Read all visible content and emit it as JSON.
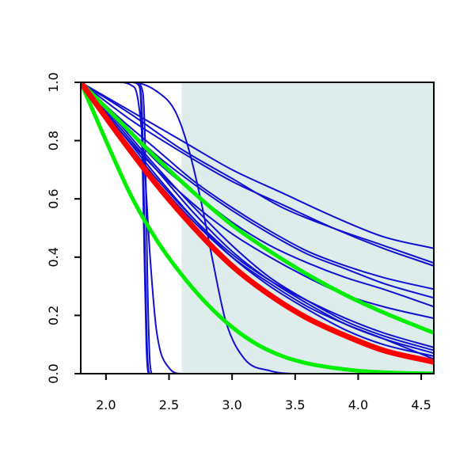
{
  "chart_data": {
    "type": "line",
    "title": "",
    "xlabel": "",
    "ylabel": "",
    "xlim": [
      1.8,
      4.6
    ],
    "ylim": [
      0,
      1
    ],
    "grid": false,
    "x_ticks": [
      2.0,
      2.5,
      3.0,
      3.5,
      4.0,
      4.5
    ],
    "x_tick_labels": [
      "2.0",
      "2.5",
      "3.0",
      "3.5",
      "4.0",
      "4.5"
    ],
    "y_ticks": [
      0.0,
      0.2,
      0.4,
      0.6,
      0.8,
      1.0
    ],
    "y_tick_labels": [
      "0.0",
      "0.2",
      "0.4",
      "0.6",
      "0.8",
      "1.0"
    ],
    "shaded_region": {
      "x": [
        2.6,
        4.6
      ],
      "color": "#deecec"
    },
    "colors": {
      "blue": "#1010d0",
      "red": "#ff0000",
      "green": "#00ee00"
    },
    "series": [
      {
        "color": "blue",
        "x": [
          1.8,
          2.2,
          2.26,
          2.28,
          2.3,
          2.32,
          2.34,
          4.6
        ],
        "y": [
          1.0,
          1.0,
          0.99,
          0.9,
          0.5,
          0.1,
          0.0,
          0.0
        ]
      },
      {
        "color": "blue",
        "x": [
          1.8,
          2.22,
          2.27,
          2.29,
          2.31,
          2.33,
          2.35,
          4.6
        ],
        "y": [
          1.0,
          1.0,
          0.98,
          0.85,
          0.4,
          0.05,
          0.0,
          0.0
        ]
      },
      {
        "color": "blue",
        "x": [
          1.8,
          2.24,
          2.29,
          2.31,
          2.33,
          2.35,
          2.37,
          4.6
        ],
        "y": [
          1.0,
          1.0,
          0.97,
          0.8,
          0.3,
          0.03,
          0.0,
          0.0
        ]
      },
      {
        "color": "blue",
        "x": [
          1.8,
          2.1,
          2.2,
          2.25,
          2.3,
          2.35,
          2.4,
          2.5,
          2.6,
          4.6
        ],
        "y": [
          1.0,
          1.0,
          0.99,
          0.95,
          0.75,
          0.4,
          0.15,
          0.02,
          0.0,
          0.0
        ]
      },
      {
        "color": "blue",
        "x": [
          1.8,
          2.2,
          2.4,
          2.55,
          2.65,
          2.75,
          2.85,
          2.95,
          3.1,
          3.3,
          3.5,
          4.6
        ],
        "y": [
          1.0,
          1.0,
          0.97,
          0.9,
          0.78,
          0.6,
          0.38,
          0.18,
          0.05,
          0.01,
          0.0,
          0.0
        ]
      },
      {
        "color": "blue",
        "x": [
          1.8,
          2.1,
          2.4,
          2.7,
          3.0,
          3.3,
          3.6,
          3.9,
          4.2,
          4.6
        ],
        "y": [
          1.0,
          0.87,
          0.75,
          0.65,
          0.56,
          0.48,
          0.41,
          0.36,
          0.31,
          0.26
        ]
      },
      {
        "color": "blue",
        "x": [
          1.8,
          2.2,
          2.6,
          3.0,
          3.4,
          3.8,
          4.2,
          4.6
        ],
        "y": [
          1.0,
          0.89,
          0.77,
          0.67,
          0.57,
          0.5,
          0.44,
          0.38
        ]
      },
      {
        "color": "blue",
        "x": [
          1.8,
          2.2,
          2.6,
          3.0,
          3.4,
          3.8,
          4.2,
          4.6
        ],
        "y": [
          1.0,
          0.9,
          0.8,
          0.7,
          0.62,
          0.54,
          0.47,
          0.43
        ]
      },
      {
        "color": "blue",
        "x": [
          1.8,
          2.2,
          2.6,
          3.0,
          3.4,
          3.8,
          4.2,
          4.6
        ],
        "y": [
          1.0,
          0.87,
          0.76,
          0.66,
          0.58,
          0.5,
          0.43,
          0.37
        ]
      },
      {
        "color": "blue",
        "x": [
          1.8,
          2.1,
          2.4,
          2.7,
          3.0,
          3.3,
          3.6,
          3.9,
          4.2,
          4.6
        ],
        "y": [
          1.0,
          0.84,
          0.7,
          0.58,
          0.48,
          0.4,
          0.33,
          0.27,
          0.23,
          0.19
        ]
      },
      {
        "color": "blue",
        "x": [
          1.8,
          2.1,
          2.4,
          2.7,
          3.0,
          3.3,
          3.6,
          3.9,
          4.2,
          4.6
        ],
        "y": [
          1.0,
          0.87,
          0.73,
          0.62,
          0.52,
          0.44,
          0.38,
          0.33,
          0.29,
          0.23
        ]
      },
      {
        "color": "blue",
        "x": [
          1.8,
          2.1,
          2.4,
          2.7,
          3.0,
          3.3,
          3.6,
          3.9,
          4.2,
          4.6
        ],
        "y": [
          1.0,
          0.88,
          0.77,
          0.66,
          0.57,
          0.49,
          0.42,
          0.37,
          0.33,
          0.29
        ]
      },
      {
        "color": "blue",
        "x": [
          1.8,
          2.1,
          2.4,
          2.7,
          3.0,
          3.3,
          3.6,
          3.9,
          4.2,
          4.6
        ],
        "y": [
          1.0,
          0.86,
          0.71,
          0.57,
          0.44,
          0.33,
          0.25,
          0.18,
          0.13,
          0.08
        ]
      },
      {
        "color": "blue",
        "x": [
          1.8,
          2.1,
          2.4,
          2.7,
          3.0,
          3.3,
          3.6,
          3.9,
          4.2,
          4.6
        ],
        "y": [
          1.0,
          0.84,
          0.68,
          0.53,
          0.4,
          0.3,
          0.22,
          0.15,
          0.1,
          0.06
        ]
      },
      {
        "color": "blue",
        "x": [
          1.8,
          2.1,
          2.4,
          2.7,
          3.0,
          3.3,
          3.6,
          3.9,
          4.2,
          4.6
        ],
        "y": [
          1.0,
          0.85,
          0.7,
          0.55,
          0.42,
          0.32,
          0.24,
          0.17,
          0.12,
          0.07
        ]
      },
      {
        "color": "blue",
        "x": [
          1.8,
          2.1,
          2.4,
          2.7,
          3.0,
          3.3,
          3.6,
          3.9,
          4.2,
          4.6
        ],
        "y": [
          1.0,
          0.82,
          0.66,
          0.52,
          0.4,
          0.31,
          0.23,
          0.17,
          0.12,
          0.05
        ]
      },
      {
        "color": "blue",
        "x": [
          1.8,
          2.1,
          2.4,
          2.7,
          3.0,
          3.3,
          3.6,
          3.9,
          4.2,
          4.6
        ],
        "y": [
          1.0,
          0.83,
          0.67,
          0.53,
          0.41,
          0.32,
          0.25,
          0.19,
          0.14,
          0.09
        ]
      },
      {
        "color": "green",
        "x": [
          1.8,
          2.1,
          2.4,
          2.7,
          3.0,
          3.3,
          3.6,
          3.9,
          4.2,
          4.6
        ],
        "y": [
          1.0,
          0.87,
          0.74,
          0.62,
          0.51,
          0.42,
          0.34,
          0.27,
          0.21,
          0.14
        ]
      },
      {
        "color": "green",
        "x": [
          1.8,
          2.0,
          2.2,
          2.4,
          2.6,
          2.8,
          3.0,
          3.2,
          3.4,
          3.6,
          3.8,
          4.0,
          4.3,
          4.6
        ],
        "y": [
          1.0,
          0.8,
          0.61,
          0.46,
          0.34,
          0.24,
          0.16,
          0.1,
          0.06,
          0.035,
          0.02,
          0.01,
          0.003,
          0.0
        ]
      },
      {
        "color": "red",
        "x": [
          1.8,
          2.1,
          2.4,
          2.7,
          3.0,
          3.3,
          3.6,
          3.9,
          4.2,
          4.6
        ],
        "y": [
          1.0,
          0.82,
          0.65,
          0.5,
          0.37,
          0.27,
          0.19,
          0.13,
          0.08,
          0.04
        ]
      }
    ]
  }
}
